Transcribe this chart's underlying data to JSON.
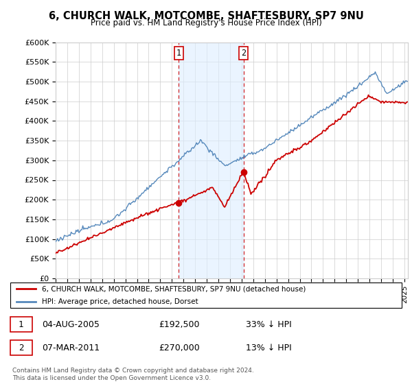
{
  "title": "6, CHURCH WALK, MOTCOMBE, SHAFTESBURY, SP7 9NU",
  "subtitle": "Price paid vs. HM Land Registry's House Price Index (HPI)",
  "ylim": [
    0,
    600000
  ],
  "yticks": [
    0,
    50000,
    100000,
    150000,
    200000,
    250000,
    300000,
    350000,
    400000,
    450000,
    500000,
    550000,
    600000
  ],
  "xlim_start": 1995.0,
  "xlim_end": 2025.3,
  "legend_entry1": "6, CHURCH WALK, MOTCOMBE, SHAFTESBURY, SP7 9NU (detached house)",
  "legend_entry2": "HPI: Average price, detached house, Dorset",
  "sale1_date": 2005.58,
  "sale1_price": 192500,
  "sale2_date": 2011.17,
  "sale2_price": 270000,
  "table_row1": [
    "1",
    "04-AUG-2005",
    "£192,500",
    "33% ↓ HPI"
  ],
  "table_row2": [
    "2",
    "07-MAR-2011",
    "£270,000",
    "13% ↓ HPI"
  ],
  "footer": "Contains HM Land Registry data © Crown copyright and database right 2024.\nThis data is licensed under the Open Government Licence v3.0.",
  "color_red": "#cc0000",
  "color_blue": "#5588bb",
  "color_blue_fill": "#ddeeff",
  "background_color": "#ffffff",
  "grid_color": "#cccccc"
}
